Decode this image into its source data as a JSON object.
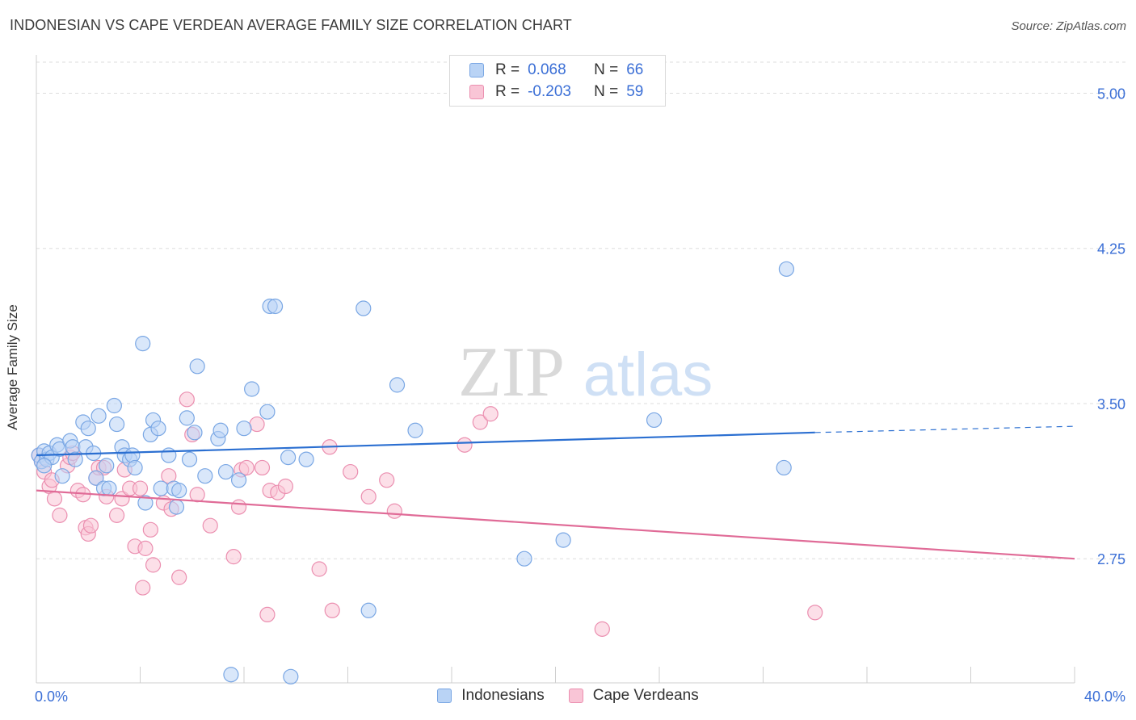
{
  "header": {
    "title": "INDONESIAN VS CAPE VERDEAN AVERAGE FAMILY SIZE CORRELATION CHART",
    "source": "Source: ZipAtlas.com"
  },
  "legend_top": {
    "rows": [
      {
        "r_label": "R =",
        "r_value": "0.068",
        "n_label": "N =",
        "n_value": "66"
      },
      {
        "r_label": "R =",
        "r_value": "-0.203",
        "n_label": "N =",
        "n_value": "59"
      }
    ]
  },
  "watermark": {
    "part1": "ZIP",
    "part2": "atlas"
  },
  "colors": {
    "blue_fill": "#b9d3f5",
    "blue_stroke": "#7aa7e4",
    "blue_line": "#2b6fd1",
    "pink_fill": "#f9c5d6",
    "pink_stroke": "#eb8fb0",
    "pink_line": "#e06b97",
    "tick_text": "#3b6fd6",
    "grid": "#dddddd"
  },
  "chart_data": {
    "type": "scatter",
    "title": "INDONESIAN VS CAPE VERDEAN AVERAGE FAMILY SIZE CORRELATION CHART",
    "xlabel": "",
    "ylabel": "Average Family Size",
    "xlim": [
      0,
      40
    ],
    "ylim": [
      2.15,
      5.15
    ],
    "x_tick_labels": [
      "0.0%",
      "40.0%"
    ],
    "y_ticks": [
      2.75,
      3.5,
      4.25,
      5.0
    ],
    "y_tick_labels": [
      "2.75",
      "3.50",
      "4.25",
      "5.00"
    ],
    "grid": "horizontal dashed",
    "legend": "top-center",
    "series": [
      {
        "name": "Indonesians",
        "trend": {
          "x": [
            0,
            30
          ],
          "y": [
            3.25,
            3.36
          ],
          "dashed_to_x": 40,
          "dashed_to_y": 3.39
        },
        "points": [
          [
            0.1,
            3.25
          ],
          [
            0.2,
            3.22
          ],
          [
            0.3,
            3.27
          ],
          [
            0.4,
            3.23
          ],
          [
            0.5,
            3.26
          ],
          [
            0.6,
            3.24
          ],
          [
            0.8,
            3.3
          ],
          [
            0.9,
            3.28
          ],
          [
            1.0,
            3.15
          ],
          [
            1.3,
            3.32
          ],
          [
            1.4,
            3.29
          ],
          [
            1.5,
            3.23
          ],
          [
            1.8,
            3.41
          ],
          [
            1.9,
            3.29
          ],
          [
            2.0,
            3.38
          ],
          [
            2.2,
            3.26
          ],
          [
            2.3,
            3.14
          ],
          [
            2.4,
            3.44
          ],
          [
            2.6,
            3.09
          ],
          [
            2.7,
            3.2
          ],
          [
            2.8,
            3.09
          ],
          [
            3.0,
            3.49
          ],
          [
            3.1,
            3.4
          ],
          [
            3.3,
            3.29
          ],
          [
            3.4,
            3.25
          ],
          [
            3.6,
            3.23
          ],
          [
            3.7,
            3.25
          ],
          [
            3.8,
            3.19
          ],
          [
            4.1,
            3.79
          ],
          [
            4.2,
            3.02
          ],
          [
            4.4,
            3.35
          ],
          [
            4.5,
            3.42
          ],
          [
            4.7,
            3.38
          ],
          [
            4.8,
            3.09
          ],
          [
            5.1,
            3.25
          ],
          [
            5.3,
            3.09
          ],
          [
            5.4,
            3.0
          ],
          [
            5.5,
            3.08
          ],
          [
            5.8,
            3.43
          ],
          [
            5.9,
            3.23
          ],
          [
            6.1,
            3.36
          ],
          [
            6.2,
            3.68
          ],
          [
            6.5,
            3.15
          ],
          [
            7.0,
            3.33
          ],
          [
            7.1,
            3.37
          ],
          [
            7.3,
            3.17
          ],
          [
            7.5,
            2.19
          ],
          [
            7.8,
            3.13
          ],
          [
            8.0,
            3.38
          ],
          [
            8.3,
            3.57
          ],
          [
            8.9,
            3.46
          ],
          [
            9.0,
            3.97
          ],
          [
            9.2,
            3.97
          ],
          [
            9.7,
            3.24
          ],
          [
            9.8,
            2.18
          ],
          [
            10.4,
            3.23
          ],
          [
            12.6,
            3.96
          ],
          [
            12.8,
            2.5
          ],
          [
            13.9,
            3.59
          ],
          [
            14.6,
            3.37
          ],
          [
            18.8,
            2.75
          ],
          [
            20.3,
            2.84
          ],
          [
            23.8,
            3.42
          ],
          [
            28.8,
            3.19
          ],
          [
            28.9,
            4.15
          ],
          [
            0.3,
            3.2
          ]
        ]
      },
      {
        "name": "Cape Verdeans",
        "trend": {
          "x": [
            0,
            40
          ],
          "y": [
            3.08,
            2.75
          ]
        },
        "points": [
          [
            0.2,
            3.22
          ],
          [
            0.3,
            3.17
          ],
          [
            0.5,
            3.1
          ],
          [
            0.6,
            3.13
          ],
          [
            0.7,
            3.04
          ],
          [
            0.9,
            2.96
          ],
          [
            1.2,
            3.2
          ],
          [
            1.3,
            3.24
          ],
          [
            1.4,
            3.26
          ],
          [
            1.6,
            3.08
          ],
          [
            1.8,
            3.06
          ],
          [
            1.9,
            2.9
          ],
          [
            2.0,
            2.87
          ],
          [
            2.1,
            2.91
          ],
          [
            2.3,
            3.14
          ],
          [
            2.4,
            3.19
          ],
          [
            2.6,
            3.19
          ],
          [
            2.7,
            3.05
          ],
          [
            3.1,
            2.96
          ],
          [
            3.3,
            3.04
          ],
          [
            3.4,
            3.18
          ],
          [
            3.6,
            3.09
          ],
          [
            3.8,
            2.81
          ],
          [
            4.0,
            3.09
          ],
          [
            4.1,
            2.61
          ],
          [
            4.2,
            2.8
          ],
          [
            4.4,
            2.89
          ],
          [
            4.5,
            2.72
          ],
          [
            4.9,
            3.02
          ],
          [
            5.1,
            3.15
          ],
          [
            5.2,
            2.99
          ],
          [
            5.5,
            2.66
          ],
          [
            5.8,
            3.52
          ],
          [
            6.0,
            3.35
          ],
          [
            6.2,
            3.06
          ],
          [
            6.7,
            2.91
          ],
          [
            7.6,
            2.76
          ],
          [
            7.8,
            3.0
          ],
          [
            7.9,
            3.18
          ],
          [
            8.1,
            3.19
          ],
          [
            8.5,
            3.4
          ],
          [
            8.7,
            3.19
          ],
          [
            8.9,
            2.48
          ],
          [
            9.0,
            3.08
          ],
          [
            9.3,
            3.07
          ],
          [
            9.6,
            3.1
          ],
          [
            10.9,
            2.7
          ],
          [
            11.3,
            3.29
          ],
          [
            11.4,
            2.5
          ],
          [
            12.1,
            3.17
          ],
          [
            12.8,
            3.05
          ],
          [
            13.5,
            3.13
          ],
          [
            13.8,
            2.98
          ],
          [
            16.5,
            3.3
          ],
          [
            17.1,
            3.41
          ],
          [
            17.5,
            3.45
          ],
          [
            21.8,
            2.41
          ],
          [
            30.0,
            2.49
          ],
          [
            0.1,
            3.25
          ]
        ]
      }
    ]
  },
  "bottom_legend": {
    "items": [
      "Indonesians",
      "Cape Verdeans"
    ]
  }
}
